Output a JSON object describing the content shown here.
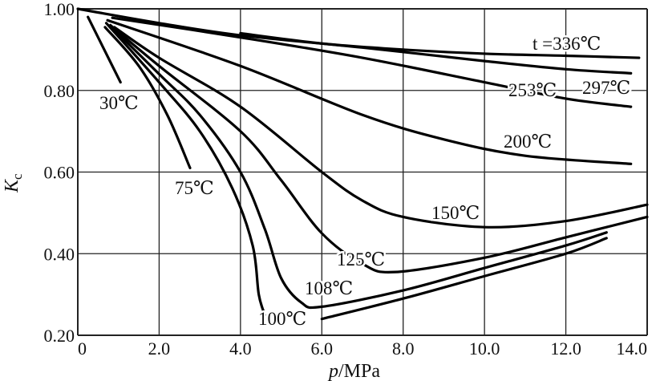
{
  "chart_data": {
    "type": "line",
    "title": "",
    "xlabel": "p/MPa",
    "xlabel_italic": "p",
    "xlabel_unit": "/MPa",
    "ylabel": "Kc",
    "ylabel_main": "K",
    "ylabel_sub": "c",
    "xlim": [
      0,
      14
    ],
    "ylim": [
      0.2,
      1.0
    ],
    "grid": true,
    "x_ticks": [
      0,
      2,
      4,
      6,
      8,
      10,
      12,
      14
    ],
    "x_tick_labels": [
      "0",
      "2.0",
      "4.0",
      "6.0",
      "8.0",
      "10.0",
      "12.0",
      "14.0"
    ],
    "y_ticks": [
      0.2,
      0.4,
      0.6,
      0.8,
      1.0
    ],
    "y_tick_labels": [
      "0.20",
      "0.40",
      "0.60",
      "0.80",
      "1.00"
    ],
    "series": [
      {
        "name": "t =336℃",
        "points": [
          [
            4.0,
            0.94
          ],
          [
            6,
            0.915
          ],
          [
            8,
            0.9
          ],
          [
            10,
            0.89
          ],
          [
            12,
            0.885
          ],
          [
            13.8,
            0.88
          ]
        ]
      },
      {
        "name": "297℃",
        "points": [
          [
            0,
            1.0
          ],
          [
            2,
            0.965
          ],
          [
            4,
            0.935
          ],
          [
            7,
            0.905
          ],
          [
            10,
            0.872
          ],
          [
            12,
            0.852
          ],
          [
            13.6,
            0.842
          ]
        ]
      },
      {
        "name": "253℃",
        "points": [
          [
            0.85,
            0.978
          ],
          [
            4,
            0.93
          ],
          [
            7,
            0.88
          ],
          [
            10,
            0.82
          ],
          [
            12,
            0.78
          ],
          [
            13.6,
            0.76
          ]
        ]
      },
      {
        "name": "200℃",
        "points": [
          [
            0.73,
            0.972
          ],
          [
            4,
            0.86
          ],
          [
            7,
            0.74
          ],
          [
            9,
            0.68
          ],
          [
            11,
            0.64
          ],
          [
            13.6,
            0.62
          ]
        ]
      },
      {
        "name": "150℃",
        "points": [
          [
            0.9,
            0.955
          ],
          [
            2,
            0.88
          ],
          [
            4,
            0.76
          ],
          [
            6,
            0.6
          ],
          [
            7,
            0.53
          ],
          [
            8,
            0.49
          ],
          [
            10,
            0.465
          ],
          [
            12,
            0.48
          ],
          [
            14,
            0.52
          ]
        ]
      },
      {
        "name": "125℃",
        "points": [
          [
            0.8,
            0.96
          ],
          [
            2,
            0.86
          ],
          [
            4,
            0.7
          ],
          [
            5,
            0.58
          ],
          [
            6,
            0.45
          ],
          [
            7,
            0.375
          ],
          [
            7.8,
            0.355
          ],
          [
            10,
            0.39
          ],
          [
            12,
            0.44
          ],
          [
            14,
            0.49
          ]
        ]
      },
      {
        "name": "108℃",
        "points": [
          [
            0.8,
            0.958
          ],
          [
            2,
            0.84
          ],
          [
            3,
            0.74
          ],
          [
            4,
            0.6
          ],
          [
            4.6,
            0.46
          ],
          [
            5,
            0.34
          ],
          [
            5.5,
            0.28
          ],
          [
            6,
            0.27
          ],
          [
            8,
            0.31
          ],
          [
            10,
            0.365
          ],
          [
            12,
            0.42
          ],
          [
            13,
            0.452
          ]
        ]
      },
      {
        "name": "100℃",
        "points": [
          [
            0.7,
            0.965
          ],
          [
            2,
            0.82
          ],
          [
            3,
            0.7
          ],
          [
            3.8,
            0.56
          ],
          [
            4.3,
            0.42
          ],
          [
            4.45,
            0.3
          ],
          [
            4.6,
            0.25
          ]
        ]
      },
      {
        "name": "100℃ (high pressure branch)",
        "label_hidden": true,
        "points": [
          [
            6,
            0.24
          ],
          [
            8,
            0.29
          ],
          [
            10,
            0.345
          ],
          [
            12,
            0.4
          ],
          [
            13,
            0.438
          ]
        ]
      },
      {
        "name": "75℃",
        "points": [
          [
            0.67,
            0.955
          ],
          [
            1.5,
            0.86
          ],
          [
            2.2,
            0.74
          ],
          [
            2.76,
            0.61
          ]
        ]
      },
      {
        "name": "30℃",
        "points": [
          [
            0.25,
            0.98
          ],
          [
            0.6,
            0.91
          ],
          [
            1.05,
            0.82
          ]
        ]
      }
    ]
  }
}
